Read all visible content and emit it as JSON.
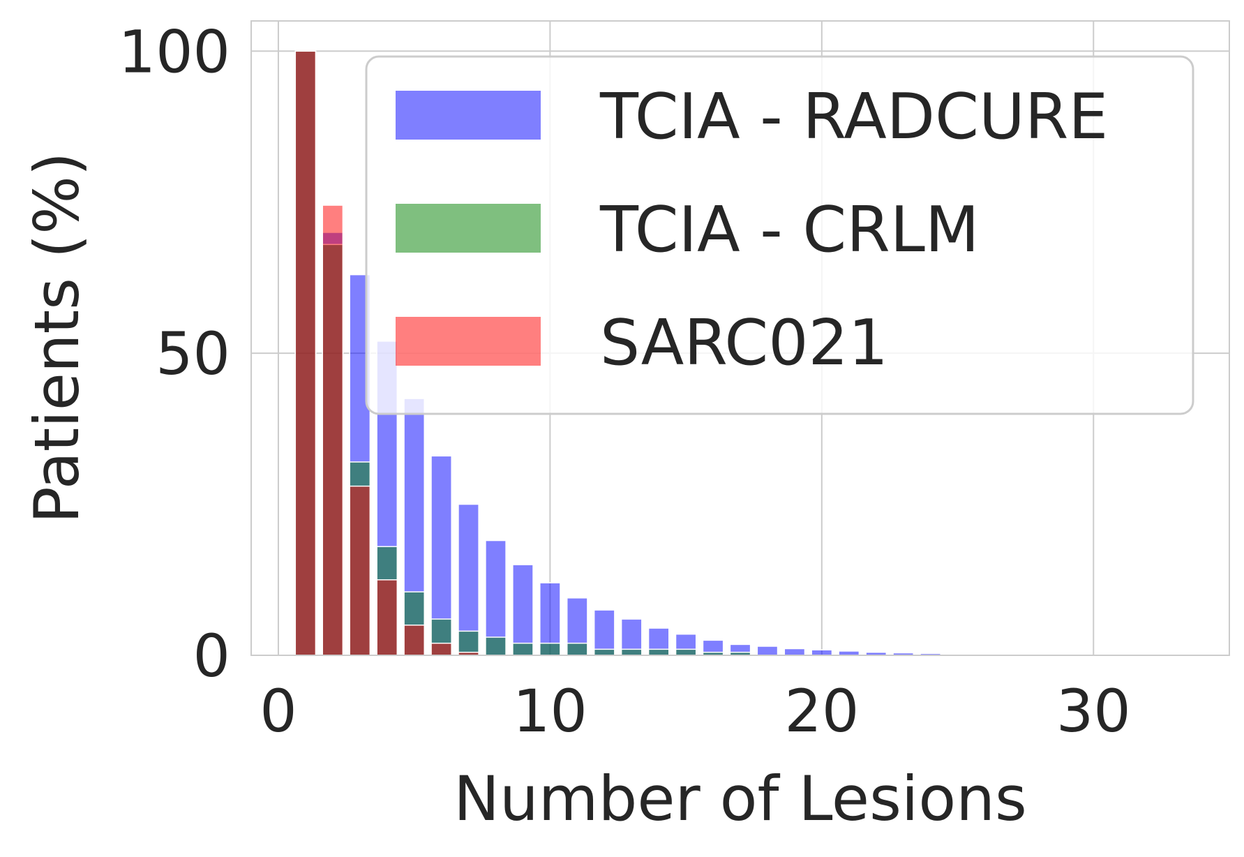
{
  "chart_data": {
    "type": "bar",
    "xlabel": "Number of Lesions",
    "ylabel": "Patients (%)",
    "xlim": [
      -1,
      35
    ],
    "ylim": [
      0,
      105
    ],
    "xticks": [
      0,
      10,
      20,
      30
    ],
    "yticks": [
      0,
      50,
      100
    ],
    "grid": true,
    "legend_position": "top-right",
    "series": [
      {
        "name": "TCIA - RADCURE",
        "color": "#0000ff",
        "opacity": 0.5,
        "x": [
          1,
          2,
          3,
          4,
          5,
          6,
          7,
          8,
          9,
          10,
          11,
          12,
          13,
          14,
          15,
          16,
          17,
          18,
          19,
          20,
          21,
          22,
          23,
          24,
          25
        ],
        "values": [
          100,
          70,
          63,
          52,
          42.5,
          33,
          25,
          19,
          15,
          12,
          9.5,
          7.5,
          6,
          4.5,
          3.5,
          2.5,
          1.8,
          1.5,
          1.1,
          0.9,
          0.7,
          0.5,
          0.4,
          0.3,
          0.2
        ]
      },
      {
        "name": "TCIA - CRLM",
        "color": "#008000",
        "opacity": 0.5,
        "x": [
          1,
          2,
          3,
          4,
          5,
          6,
          7,
          8,
          9,
          10,
          11,
          12,
          13,
          14,
          15,
          16,
          17
        ],
        "values": [
          100,
          68,
          32,
          18,
          10.5,
          6,
          4,
          3,
          2,
          2,
          2,
          1,
          1,
          1,
          1,
          0.5,
          0.5
        ]
      },
      {
        "name": "SARC021",
        "color": "#ff0000",
        "opacity": 0.5,
        "x": [
          1,
          2,
          3,
          4,
          5,
          6,
          7
        ],
        "values": [
          100,
          74.5,
          28,
          12.5,
          5,
          2,
          0.5
        ]
      }
    ]
  }
}
